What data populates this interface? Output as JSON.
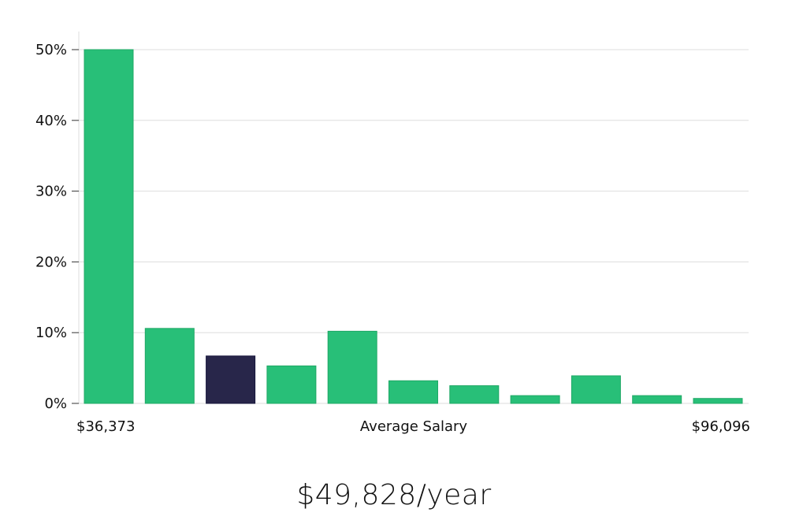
{
  "chart_data": {
    "type": "bar",
    "values": [
      50.0,
      10.6,
      6.7,
      5.3,
      10.2,
      3.2,
      2.5,
      1.1,
      3.9,
      1.1,
      0.7
    ],
    "highlight_index": 2,
    "ylim": [
      0,
      50
    ],
    "yticks": [
      0,
      10,
      20,
      30,
      40,
      50
    ],
    "ytick_labels": [
      "0%",
      "10%",
      "20%",
      "30%",
      "40%",
      "50%"
    ],
    "xlabel": "Average Salary",
    "x_min_label": "$36,373",
    "x_max_label": "$96,096",
    "grid": true,
    "colors": {
      "bar": "#28bf78",
      "bar_stroke": "#20a866",
      "highlight": "#28264a",
      "highlight_stroke": "#15143a"
    }
  },
  "headline": "$49,828/year"
}
